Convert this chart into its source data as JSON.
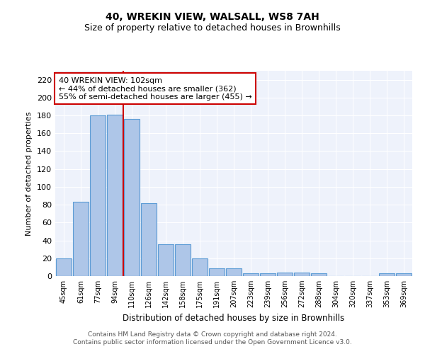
{
  "title1": "40, WREKIN VIEW, WALSALL, WS8 7AH",
  "title2": "Size of property relative to detached houses in Brownhills",
  "xlabel": "Distribution of detached houses by size in Brownhills",
  "ylabel": "Number of detached properties",
  "categories": [
    "45sqm",
    "61sqm",
    "77sqm",
    "94sqm",
    "110sqm",
    "126sqm",
    "142sqm",
    "158sqm",
    "175sqm",
    "191sqm",
    "207sqm",
    "223sqm",
    "239sqm",
    "256sqm",
    "272sqm",
    "288sqm",
    "304sqm",
    "320sqm",
    "337sqm",
    "353sqm",
    "369sqm"
  ],
  "values": [
    20,
    83,
    180,
    181,
    176,
    82,
    36,
    36,
    20,
    9,
    9,
    3,
    3,
    4,
    4,
    3,
    0,
    0,
    0,
    3,
    3
  ],
  "bar_color": "#aec6e8",
  "bar_edge_color": "#5b9bd5",
  "ylim": [
    0,
    230
  ],
  "yticks": [
    0,
    20,
    40,
    60,
    80,
    100,
    120,
    140,
    160,
    180,
    200,
    220
  ],
  "vline_x_index": 3.5,
  "annotation_title": "40 WREKIN VIEW: 102sqm",
  "annotation_line1": "← 44% of detached houses are smaller (362)",
  "annotation_line2": "55% of semi-detached houses are larger (455) →",
  "vline_color": "#cc0000",
  "annotation_box_edge_color": "#cc0000",
  "footer1": "Contains HM Land Registry data © Crown copyright and database right 2024.",
  "footer2": "Contains public sector information licensed under the Open Government Licence v3.0.",
  "background_color": "#eef2fb"
}
